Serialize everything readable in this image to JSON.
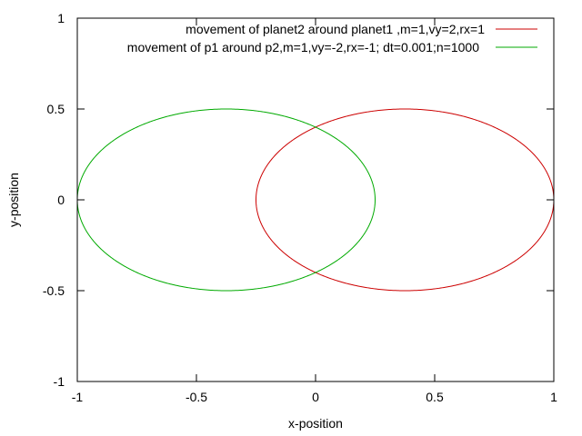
{
  "chart_data": {
    "type": "line",
    "title": "",
    "xlabel": "x-position",
    "ylabel": "y-position",
    "xlim": [
      -1,
      1
    ],
    "ylim": [
      -1,
      1
    ],
    "xticks": [
      -1,
      -0.5,
      0,
      0.5,
      1
    ],
    "xtick_labels": [
      "-1",
      "-0.5",
      "0",
      "0.5",
      "1"
    ],
    "yticks": [
      -1,
      -0.5,
      0,
      0.5,
      1
    ],
    "ytick_labels": [
      "-1",
      "-0.5",
      "0",
      "0.5",
      "1"
    ],
    "grid": false,
    "legend_position": "top-right",
    "series": [
      {
        "name": "movement of planet2 around planet1 ,m=1,vy=2,rx=1",
        "color": "#cc0000",
        "shape": "ellipse",
        "center": [
          0.375,
          0.0
        ],
        "semi_axes": [
          0.625,
          0.5
        ],
        "x_range": [
          -0.25,
          1.0
        ],
        "y_range": [
          -0.5,
          0.5
        ]
      },
      {
        "name": "movement of p1 around p2,m=1,vy=-2,rx=-1; dt=0.001;n=1000",
        "color": "#00aa00",
        "shape": "ellipse",
        "center": [
          -0.375,
          0.0
        ],
        "semi_axes": [
          0.625,
          0.5
        ],
        "x_range": [
          -1.0,
          0.25
        ],
        "y_range": [
          -0.5,
          0.5
        ]
      }
    ]
  }
}
